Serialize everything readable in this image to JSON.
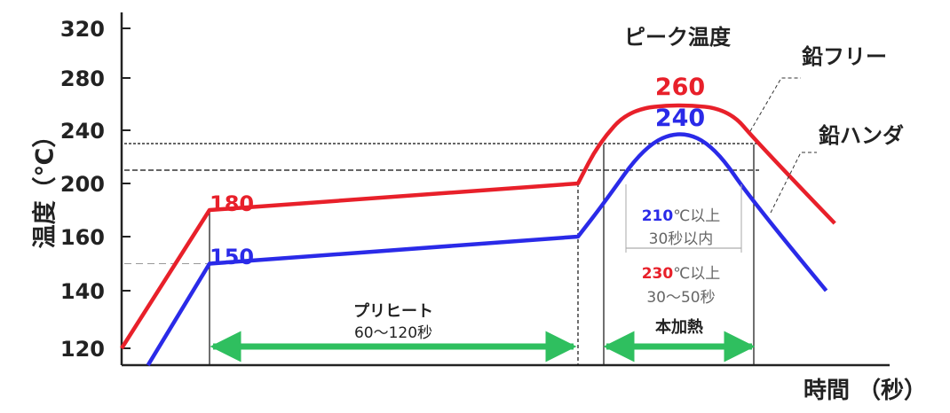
{
  "chart_data": {
    "type": "line",
    "ylabel": "温度（℃）",
    "xlabel": "時間 （秒）",
    "ylim": [
      115,
      325
    ],
    "yticks": [
      120,
      140,
      160,
      200,
      240,
      280,
      320
    ],
    "series": [
      {
        "name": "鉛フリー",
        "color": "#e8202a",
        "peak_label": "260",
        "soak_label": "180",
        "points": [
          [
            0,
            120
          ],
          [
            1,
            180
          ],
          [
            8,
            200
          ],
          [
            8.4,
            230
          ],
          [
            9,
            256
          ],
          [
            10,
            260
          ],
          [
            11,
            256
          ],
          [
            11.6,
            230
          ],
          [
            13.4,
            170
          ]
        ]
      },
      {
        "name": "鉛ハンダ",
        "color": "#2a2ae8",
        "peak_label": "240",
        "soak_label": "150",
        "points": [
          [
            0.3,
            115
          ],
          [
            1,
            150
          ],
          [
            8,
            160
          ],
          [
            8.5,
            185
          ],
          [
            9.3,
            228
          ],
          [
            10,
            240
          ],
          [
            10.7,
            228
          ],
          [
            11.5,
            185
          ],
          [
            13.2,
            140
          ]
        ]
      }
    ],
    "reference_lines": [
      230,
      210,
      150
    ],
    "peak_title": "ピーク温度",
    "preheat": {
      "label": "プリヒート",
      "duration": "60〜120秒"
    },
    "main_heat": {
      "label": "本加熱"
    },
    "condition_210": {
      "value": "210",
      "rest": "℃以上",
      "time": "30秒以内"
    },
    "condition_230": {
      "value": "230",
      "rest": "℃以上",
      "time": "30〜50秒"
    },
    "arrow_color": "#2fbf5f"
  }
}
